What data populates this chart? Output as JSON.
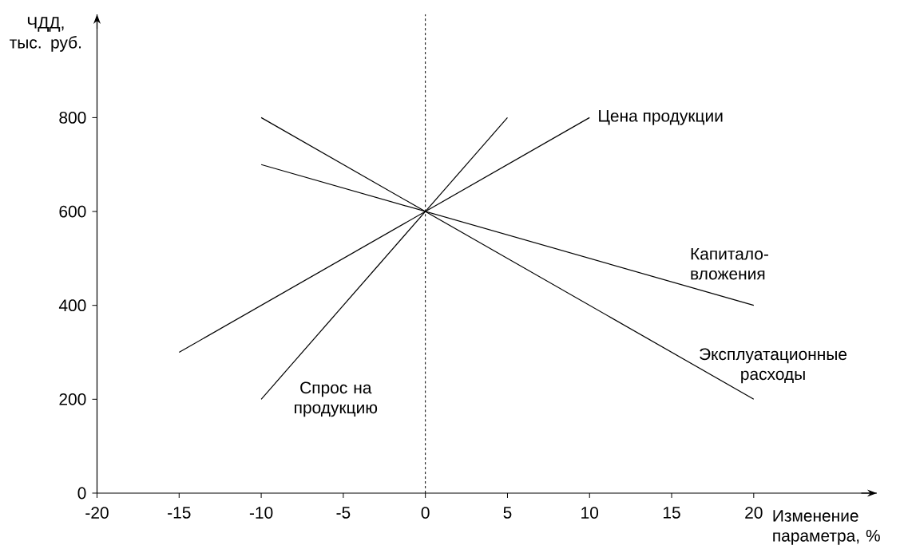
{
  "chart_data": {
    "type": "line",
    "xlabel": "Изменение параметра, %",
    "ylabel": "ЧДД, тыс. руб.",
    "series": [
      {
        "name": "Цена продукции",
        "color": "#000000",
        "x": [
          -15,
          10
        ],
        "values": [
          300,
          800
        ]
      },
      {
        "name": "Спрос на продукцию",
        "color": "#000000",
        "x": [
          -10,
          5
        ],
        "values": [
          200,
          800
        ]
      },
      {
        "name": "Капитало-вложения",
        "color": "#000000",
        "x": [
          -10,
          20
        ],
        "values": [
          700,
          400
        ]
      },
      {
        "name": "Эксплуатационные расходы",
        "color": "#000000",
        "x": [
          -10,
          20
        ],
        "values": [
          800,
          200
        ]
      }
    ],
    "xlim": [
      -20,
      27.5
    ],
    "ylim": [
      0,
      1020
    ],
    "xticks": [
      -20,
      -15,
      -10,
      -5,
      0,
      5,
      10,
      15,
      20
    ],
    "yticks": [
      0,
      200,
      400,
      600,
      800
    ],
    "ref_lines": [
      {
        "axis": "x",
        "value": 0,
        "line_style": "dashed",
        "color": "#000000"
      }
    ],
    "grid": false,
    "marker": "none",
    "line_style": "solid"
  }
}
